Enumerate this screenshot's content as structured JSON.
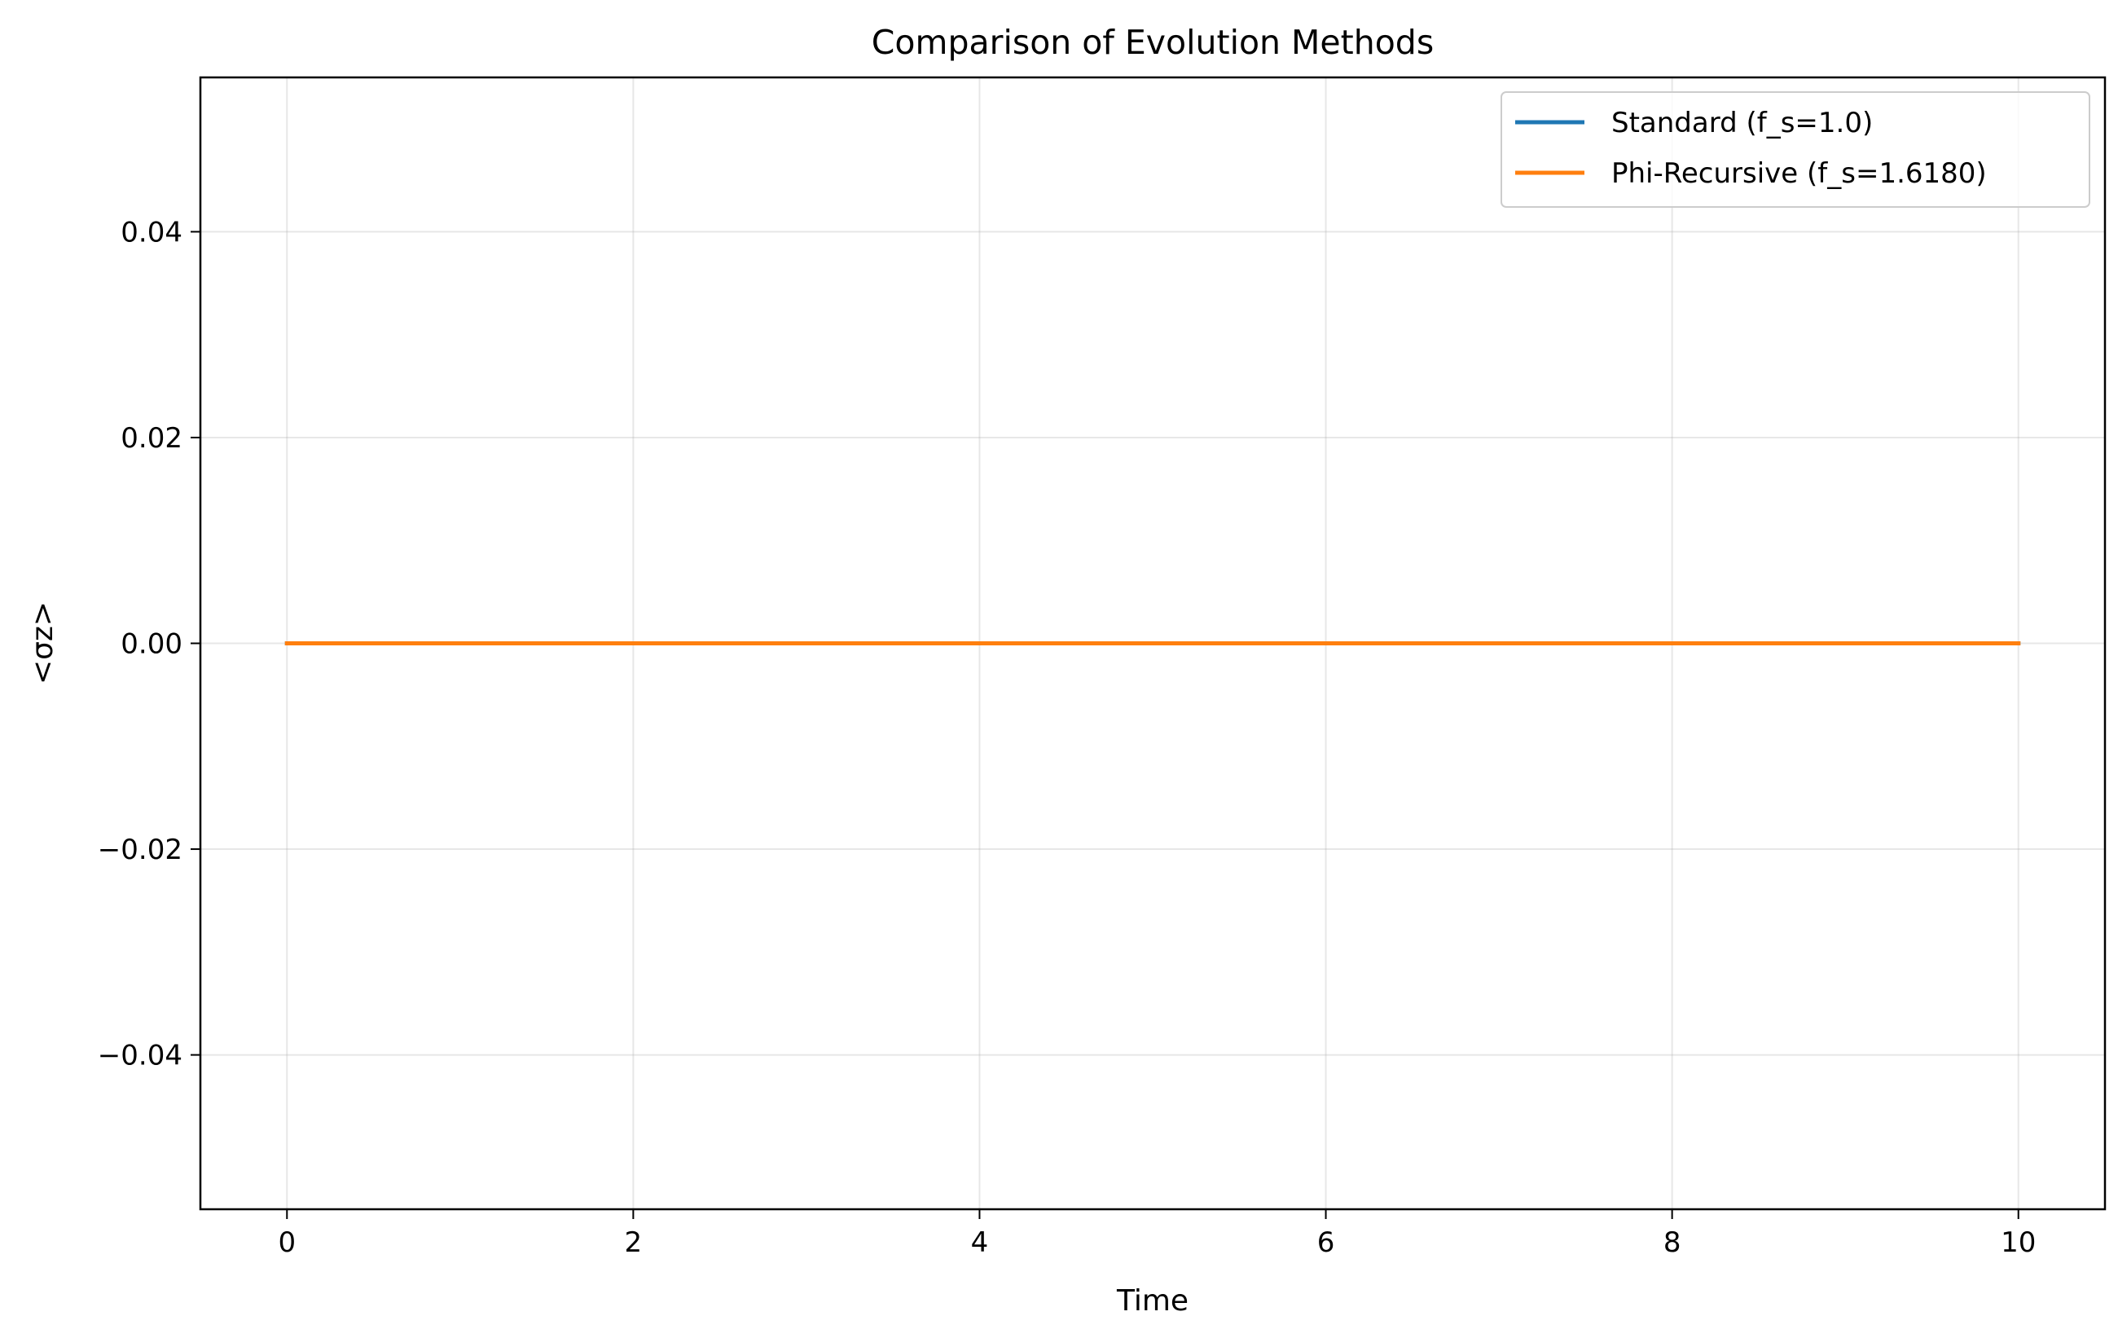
{
  "chart_data": {
    "type": "line",
    "title": "Comparison of Evolution Methods",
    "xlabel": "Time",
    "ylabel": "<σz>",
    "xlim": [
      -0.5,
      10.5
    ],
    "ylim": [
      -0.055,
      0.055
    ],
    "xticks": [
      0,
      2,
      4,
      6,
      8,
      10
    ],
    "xtick_labels": [
      "0",
      "2",
      "4",
      "6",
      "8",
      "10"
    ],
    "yticks": [
      -0.04,
      -0.02,
      0.0,
      0.02,
      0.04
    ],
    "ytick_labels": [
      "−0.04",
      "−0.02",
      "0.00",
      "0.02",
      "0.04"
    ],
    "grid": true,
    "legend_position": "top-right",
    "x": [
      0,
      10
    ],
    "series": [
      {
        "name": "Standard (f_s=1.0)",
        "color": "#1f77b4",
        "values": [
          0.0,
          0.0
        ]
      },
      {
        "name": "Phi-Recursive (f_s=1.6180)",
        "color": "#ff7f0e",
        "values": [
          0.0,
          0.0
        ]
      }
    ]
  }
}
